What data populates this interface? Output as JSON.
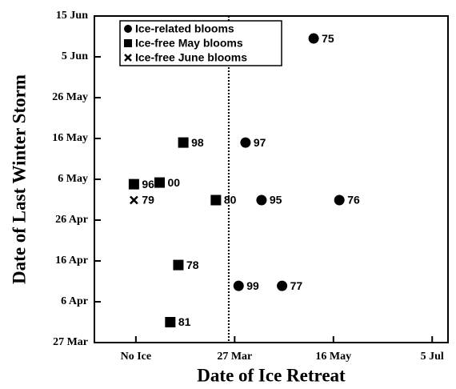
{
  "chart_data": {
    "type": "scatter",
    "x_label": "Date of Ice Retreat",
    "y_label": "Date of Last Winter Storm",
    "xlim": [
      15,
      194
    ],
    "ylim": [
      86,
      166
    ],
    "xticks": [
      {
        "value": 36,
        "label": "No Ice"
      },
      {
        "value": 86,
        "label": "27 Mar"
      },
      {
        "value": 136,
        "label": "16 May"
      },
      {
        "value": 186,
        "label": "5 Jul"
      }
    ],
    "yticks": [
      {
        "value": 86,
        "label": "27 Mar"
      },
      {
        "value": 96,
        "label": "6 Apr"
      },
      {
        "value": 106,
        "label": "16 Apr"
      },
      {
        "value": 116,
        "label": "26 Apr"
      },
      {
        "value": 126,
        "label": "6 May"
      },
      {
        "value": 136,
        "label": "16 May"
      },
      {
        "value": 146,
        "label": "26 May"
      },
      {
        "value": 156,
        "label": "5 Jun"
      },
      {
        "value": 166,
        "label": "15 Jun"
      }
    ],
    "reference_line_x": 83,
    "legend": "upper left",
    "series": [
      {
        "name": "Ice-related blooms",
        "marker": "circle",
        "color": "#000000",
        "x": [
          126,
          91.5,
          99.6,
          139,
          88,
          110
        ],
        "values": [
          160.5,
          135,
          120.9,
          120.9,
          99.9,
          99.9
        ],
        "labels": [
          "75",
          "97",
          "95",
          "76",
          "99",
          "77"
        ]
      },
      {
        "name": "Ice-free May blooms",
        "marker": "square",
        "color": "#000000",
        "x": [
          60,
          35,
          48,
          76.5,
          57.5,
          53.4
        ],
        "values": [
          135,
          124.8,
          125.2,
          120.9,
          105,
          91
        ],
        "labels": [
          "98",
          "96",
          "00",
          "80",
          "78",
          "81"
        ]
      },
      {
        "name": "Ice-free June blooms",
        "marker": "x",
        "color": "#000000",
        "x": [
          35
        ],
        "values": [
          120.9
        ],
        "labels": [
          "79"
        ]
      }
    ]
  }
}
